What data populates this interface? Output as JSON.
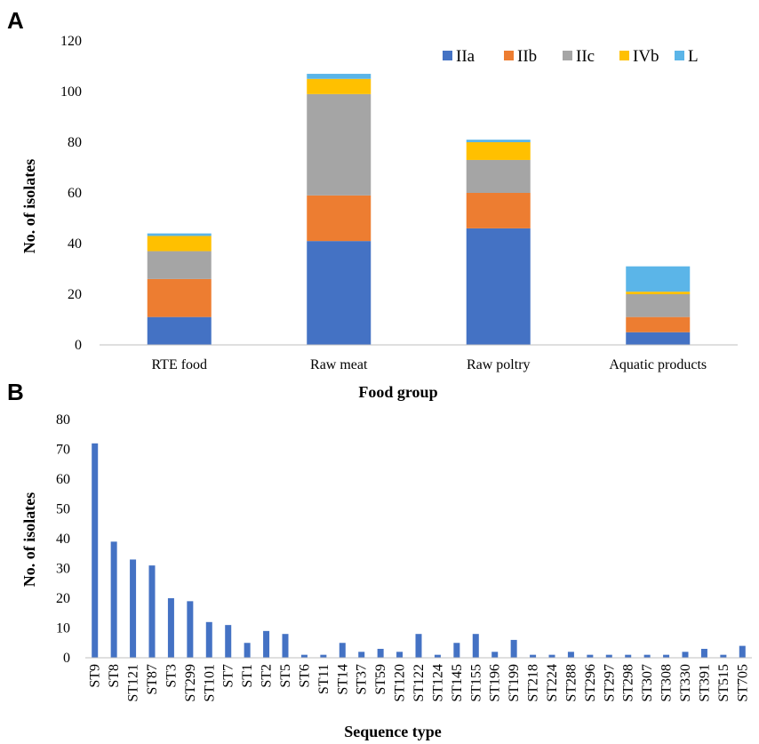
{
  "chart_data": [
    {
      "panel_label": "A",
      "type": "bar",
      "stacked": true,
      "categories": [
        "RTE food",
        "Raw meat",
        "Raw poltry",
        "Aquatic products"
      ],
      "series": [
        {
          "name": "IIa",
          "color": "#4472c4",
          "values": [
            11,
            41,
            46,
            5
          ]
        },
        {
          "name": "IIb",
          "color": "#ed7d31",
          "values": [
            15,
            18,
            14,
            6
          ]
        },
        {
          "name": "IIc",
          "color": "#a5a5a5",
          "values": [
            11,
            40,
            13,
            9
          ]
        },
        {
          "name": "IVb",
          "color": "#ffc000",
          "values": [
            6,
            6,
            7,
            1
          ]
        },
        {
          "name": "L",
          "color": "#5bb5e8",
          "values": [
            1,
            2,
            1,
            10
          ]
        }
      ],
      "xlabel": "Food group",
      "ylabel": "No. of isolates",
      "ylim": [
        0,
        120
      ],
      "yticks": [
        0,
        20,
        40,
        60,
        80,
        100,
        120
      ],
      "grid": false,
      "legend": "top-right"
    },
    {
      "panel_label": "B",
      "type": "bar",
      "categories": [
        "ST9",
        "ST8",
        "ST121",
        "ST87",
        "ST3",
        "ST299",
        "ST101",
        "ST7",
        "ST1",
        "ST2",
        "ST5",
        "ST6",
        "ST11",
        "ST14",
        "ST37",
        "ST59",
        "ST120",
        "ST122",
        "ST124",
        "ST145",
        "ST155",
        "ST196",
        "ST199",
        "ST218",
        "ST224",
        "ST288",
        "ST296",
        "ST297",
        "ST298",
        "ST307",
        "ST308",
        "ST330",
        "ST391",
        "ST515",
        "ST705"
      ],
      "values": [
        72,
        39,
        33,
        31,
        20,
        19,
        12,
        11,
        5,
        9,
        8,
        1,
        1,
        5,
        2,
        3,
        2,
        8,
        1,
        5,
        8,
        2,
        6,
        1,
        1,
        2,
        1,
        1,
        1,
        1,
        1,
        2,
        3,
        1,
        4
      ],
      "color": "#4472c4",
      "xlabel": "Sequence type",
      "ylabel": "No. of isolates",
      "ylim": [
        0,
        80
      ],
      "yticks": [
        0,
        10,
        20,
        30,
        40,
        50,
        60,
        70,
        80
      ],
      "grid": false,
      "legend": "none"
    }
  ]
}
